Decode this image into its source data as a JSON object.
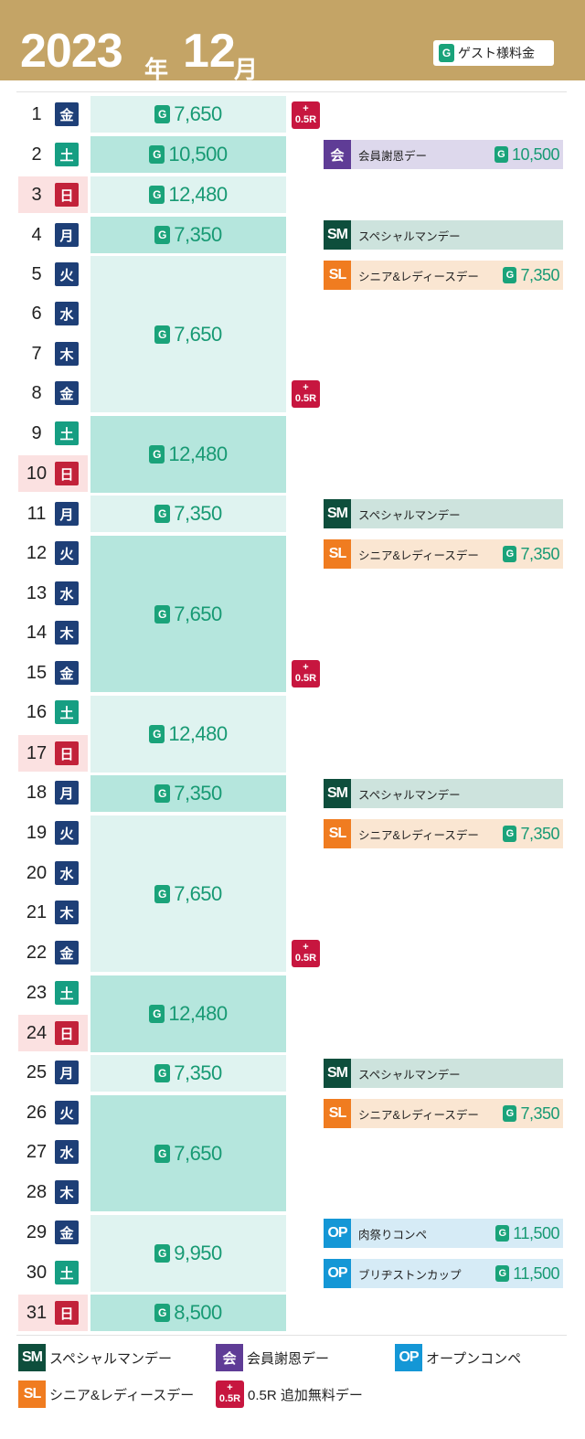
{
  "header": {
    "year": "2023",
    "year_suffix": "年",
    "month": "12",
    "month_suffix": "月"
  },
  "guest_fee_legend": {
    "icon": "G",
    "label": "ゲスト様料金"
  },
  "badge_text": "G",
  "plus_badge": {
    "plus": "+",
    "text": "0.5R"
  },
  "days": [
    {
      "num": "1",
      "wd": "金"
    },
    {
      "num": "2",
      "wd": "土"
    },
    {
      "num": "3",
      "wd": "日"
    },
    {
      "num": "4",
      "wd": "月"
    },
    {
      "num": "5",
      "wd": "火"
    },
    {
      "num": "6",
      "wd": "水"
    },
    {
      "num": "7",
      "wd": "木"
    },
    {
      "num": "8",
      "wd": "金"
    },
    {
      "num": "9",
      "wd": "土"
    },
    {
      "num": "10",
      "wd": "日"
    },
    {
      "num": "11",
      "wd": "月"
    },
    {
      "num": "12",
      "wd": "火"
    },
    {
      "num": "13",
      "wd": "水"
    },
    {
      "num": "14",
      "wd": "木"
    },
    {
      "num": "15",
      "wd": "金"
    },
    {
      "num": "16",
      "wd": "土"
    },
    {
      "num": "17",
      "wd": "日"
    },
    {
      "num": "18",
      "wd": "月"
    },
    {
      "num": "19",
      "wd": "火"
    },
    {
      "num": "20",
      "wd": "水"
    },
    {
      "num": "21",
      "wd": "木"
    },
    {
      "num": "22",
      "wd": "金"
    },
    {
      "num": "23",
      "wd": "土"
    },
    {
      "num": "24",
      "wd": "日"
    },
    {
      "num": "25",
      "wd": "月"
    },
    {
      "num": "26",
      "wd": "火"
    },
    {
      "num": "27",
      "wd": "水"
    },
    {
      "num": "28",
      "wd": "木"
    },
    {
      "num": "29",
      "wd": "金"
    },
    {
      "num": "30",
      "wd": "土"
    },
    {
      "num": "31",
      "wd": "日"
    }
  ],
  "prices": [
    {
      "days": "1",
      "value": "7,650"
    },
    {
      "days": "2",
      "value": "10,500"
    },
    {
      "days": "3",
      "value": "12,480"
    },
    {
      "days": "4",
      "value": "7,350"
    },
    {
      "days": "5-8",
      "value": "7,650"
    },
    {
      "days": "9-10",
      "value": "12,480"
    },
    {
      "days": "11",
      "value": "7,350"
    },
    {
      "days": "12-15",
      "value": "7,650"
    },
    {
      "days": "16-17",
      "value": "12,480"
    },
    {
      "days": "18",
      "value": "7,350"
    },
    {
      "days": "19-22",
      "value": "7,650"
    },
    {
      "days": "23-24",
      "value": "12,480"
    },
    {
      "days": "25",
      "value": "7,350"
    },
    {
      "days": "26-28",
      "value": "7,650"
    },
    {
      "days": "29-30",
      "value": "9,950"
    },
    {
      "days": "31",
      "value": "8,500"
    }
  ],
  "events": [
    {
      "day": "2",
      "tag": "会",
      "label": "会員謝恩デー",
      "amount": "10,500"
    },
    {
      "day": "4",
      "tag": "SM",
      "label": "スペシャルマンデー",
      "amount": ""
    },
    {
      "day": "5",
      "tag": "SL",
      "label": "シニア&レディースデー",
      "amount": "7,350"
    },
    {
      "day": "11",
      "tag": "SM",
      "label": "スペシャルマンデー",
      "amount": ""
    },
    {
      "day": "12",
      "tag": "SL",
      "label": "シニア&レディースデー",
      "amount": "7,350"
    },
    {
      "day": "18",
      "tag": "SM",
      "label": "スペシャルマンデー",
      "amount": ""
    },
    {
      "day": "19",
      "tag": "SL",
      "label": "シニア&レディースデー",
      "amount": "7,350"
    },
    {
      "day": "25",
      "tag": "SM",
      "label": "スペシャルマンデー",
      "amount": ""
    },
    {
      "day": "26",
      "tag": "SL",
      "label": "シニア&レディースデー",
      "amount": "7,350"
    },
    {
      "day": "29",
      "tag": "OP",
      "label": "肉祭りコンペ",
      "amount": "11,500"
    },
    {
      "day": "30",
      "tag": "OP",
      "label": "ブリヂストンカップ",
      "amount": "11,500"
    }
  ],
  "legend": {
    "sm": {
      "tag": "SM",
      "label": "スペシャルマンデー"
    },
    "kai": {
      "tag": "会",
      "label": "会員謝恩デー"
    },
    "op": {
      "tag": "OP",
      "label": "オープンコンペ"
    },
    "sl": {
      "tag": "SL",
      "label": "シニア&レディースデー"
    },
    "plus": {
      "label": "0.5R 追加無料デー"
    }
  },
  "colors": {
    "header_gold": "#c4a466",
    "guest_green": "#1aa37a",
    "weekday_navy": "#1e3f77",
    "saturday_green": "#169e82",
    "sunday_red": "#c2223a",
    "plus_red": "#c7163f",
    "sm_dark_green": "#0e4e3c",
    "sl_orange": "#f07c20",
    "kai_purple": "#5f3c96",
    "op_blue": "#1497d6"
  }
}
